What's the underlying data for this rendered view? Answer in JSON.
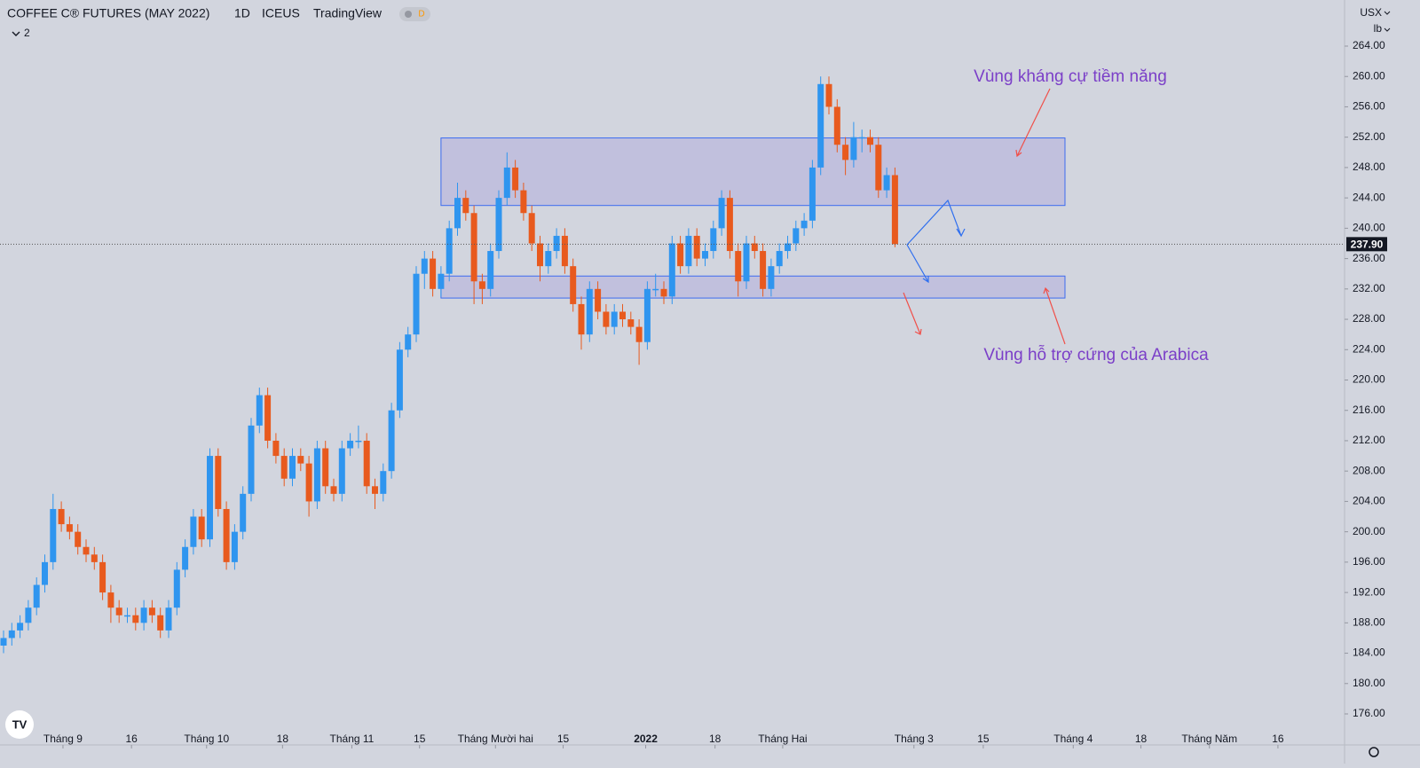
{
  "chart_data": {
    "type": "candlestick",
    "title": "COFFEE C® FUTURES (MAY 2022)",
    "interval": "1D",
    "exchange": "ICEUS",
    "source": "TradingView",
    "badge": "D",
    "indicator_count": "2",
    "currency": "USX",
    "unit": "lb",
    "up_color": "#2f95ef",
    "down_color": "#e85a1e",
    "open": [
      185,
      186,
      187,
      188,
      190,
      193,
      196,
      203,
      201,
      200,
      198,
      197,
      196,
      192,
      190,
      189,
      189,
      188,
      190,
      189,
      187,
      190,
      195,
      198,
      202,
      199,
      210,
      203,
      196,
      200,
      205,
      214,
      218,
      212,
      210,
      207,
      210,
      209,
      204,
      211,
      206,
      205,
      211,
      212,
      212,
      206,
      205,
      208,
      216,
      224,
      226,
      234,
      236,
      232,
      234,
      240,
      244,
      242,
      233,
      232,
      237,
      244,
      248,
      245,
      242,
      238,
      235,
      237,
      239,
      235,
      230,
      226,
      232,
      229,
      227,
      229,
      228,
      227,
      225,
      232,
      232,
      231,
      238,
      235,
      239,
      236,
      237,
      240,
      244,
      237,
      233,
      238,
      237,
      232,
      235,
      237,
      238,
      240,
      241,
      248,
      259,
      256,
      251,
      249,
      252,
      252,
      251,
      245,
      247
    ],
    "high": [
      187,
      188,
      189,
      191,
      194,
      197,
      205,
      204,
      202,
      201,
      199,
      198,
      197,
      193,
      191,
      190,
      190,
      191,
      191,
      190,
      191,
      196,
      199,
      203,
      203,
      211,
      211,
      204,
      201,
      206,
      215,
      219,
      219,
      213,
      211,
      211,
      211,
      210,
      212,
      212,
      207,
      212,
      213,
      214,
      213,
      207,
      209,
      217,
      225,
      227,
      235,
      237,
      237,
      235,
      241,
      246,
      245,
      243,
      234,
      238,
      245,
      250,
      249,
      246,
      243,
      239,
      238,
      240,
      240,
      236,
      231,
      233,
      233,
      230,
      230,
      230,
      229,
      228,
      233,
      234,
      233,
      239,
      239,
      240,
      240,
      238,
      241,
      245,
      245,
      238,
      239,
      239,
      238,
      236,
      238,
      239,
      241,
      242,
      249,
      260,
      260,
      257,
      252,
      254,
      253,
      253,
      252,
      248,
      248
    ],
    "low": [
      184,
      185,
      186,
      187,
      189,
      192,
      195,
      200,
      199,
      197,
      196,
      195,
      191,
      188,
      188,
      188,
      187,
      187,
      188,
      186,
      186,
      189,
      194,
      197,
      198,
      198,
      202,
      195,
      195,
      199,
      204,
      213,
      211,
      209,
      206,
      206,
      208,
      202,
      203,
      205,
      204,
      204,
      210,
      211,
      205,
      203,
      204,
      207,
      215,
      223,
      225,
      232,
      231,
      231,
      233,
      239,
      241,
      230,
      230,
      231,
      236,
      243,
      244,
      241,
      237,
      233,
      234,
      236,
      234,
      229,
      224,
      225,
      228,
      226,
      226,
      227,
      226,
      222,
      224,
      231,
      230,
      230,
      234,
      234,
      235,
      235,
      236,
      239,
      236,
      231,
      232,
      236,
      231,
      231,
      234,
      236,
      237,
      239,
      240,
      247,
      255,
      250,
      247,
      248,
      250,
      250,
      244,
      244,
      237.5
    ],
    "close": [
      186,
      187,
      188,
      190,
      193,
      196,
      203,
      201,
      200,
      198,
      197,
      196,
      192,
      190,
      189,
      189,
      188,
      190,
      189,
      187,
      190,
      195,
      198,
      202,
      199,
      210,
      203,
      196,
      200,
      205,
      214,
      218,
      212,
      210,
      207,
      210,
      209,
      204,
      211,
      206,
      205,
      211,
      212,
      212,
      206,
      205,
      208,
      216,
      224,
      226,
      234,
      236,
      232,
      234,
      240,
      244,
      242,
      233,
      232,
      237,
      244,
      248,
      245,
      242,
      238,
      235,
      237,
      239,
      235,
      230,
      226,
      232,
      229,
      227,
      229,
      228,
      227,
      225,
      232,
      232,
      231,
      238,
      235,
      239,
      236,
      237,
      240,
      244,
      237,
      233,
      238,
      237,
      232,
      235,
      237,
      238,
      240,
      241,
      248,
      259,
      256,
      251,
      249,
      252,
      252,
      251,
      245,
      247,
      237.9
    ],
    "last_price": {
      "value": 237.9,
      "label": "237.90"
    },
    "ylim": [
      172,
      268
    ],
    "yticks": [
      {
        "value": 176,
        "label": "176.00"
      },
      {
        "value": 180,
        "label": "180.00"
      },
      {
        "value": 184,
        "label": "184.00"
      },
      {
        "value": 188,
        "label": "188.00"
      },
      {
        "value": 192,
        "label": "192.00"
      },
      {
        "value": 196,
        "label": "196.00"
      },
      {
        "value": 200,
        "label": "200.00"
      },
      {
        "value": 204,
        "label": "204.00"
      },
      {
        "value": 208,
        "label": "208.00"
      },
      {
        "value": 212,
        "label": "212.00"
      },
      {
        "value": 216,
        "label": "216.00"
      },
      {
        "value": 220,
        "label": "220.00"
      },
      {
        "value": 224,
        "label": "224.00"
      },
      {
        "value": 228,
        "label": "228.00"
      },
      {
        "value": 232,
        "label": "232.00"
      },
      {
        "value": 236,
        "label": "236.00"
      },
      {
        "value": 240,
        "label": "240.00"
      },
      {
        "value": 244,
        "label": "244.00"
      },
      {
        "value": 248,
        "label": "248.00"
      },
      {
        "value": 252,
        "label": "252.00"
      },
      {
        "value": 256,
        "label": "256.00"
      },
      {
        "value": 260,
        "label": "260.00"
      },
      {
        "value": 264,
        "label": "264.00"
      }
    ],
    "xticks": [
      {
        "value": 7.2,
        "label": "Tháng 9"
      },
      {
        "value": 15.5,
        "label": "16"
      },
      {
        "value": 24.6,
        "label": "Tháng 10"
      },
      {
        "value": 33.8,
        "label": "18"
      },
      {
        "value": 42.2,
        "label": "Tháng 11"
      },
      {
        "value": 50.4,
        "label": "15"
      },
      {
        "value": 59.6,
        "label": "Tháng Mười hai"
      },
      {
        "value": 67.8,
        "label": "15"
      },
      {
        "value": 77.8,
        "label": "2022"
      },
      {
        "value": 86.2,
        "label": "18"
      },
      {
        "value": 94.4,
        "label": "Tháng Hai"
      },
      {
        "value": 110.3,
        "label": "Tháng 3"
      },
      {
        "value": 118.7,
        "label": "15"
      },
      {
        "value": 129.6,
        "label": "Tháng 4"
      },
      {
        "value": 137.8,
        "label": "18"
      },
      {
        "value": 146.1,
        "label": "Tháng Năm"
      },
      {
        "value": 154.4,
        "label": "16"
      }
    ],
    "zones": [
      {
        "name": "Vùng kháng cự tiềm năng",
        "range": [
          243,
          251.9
        ],
        "x": [
          53,
          128.6
        ]
      },
      {
        "name": "Vùng hỗ trợ cứng của Arabica",
        "range": [
          230.8,
          233.7
        ],
        "x": [
          53,
          128.6
        ]
      }
    ]
  }
}
